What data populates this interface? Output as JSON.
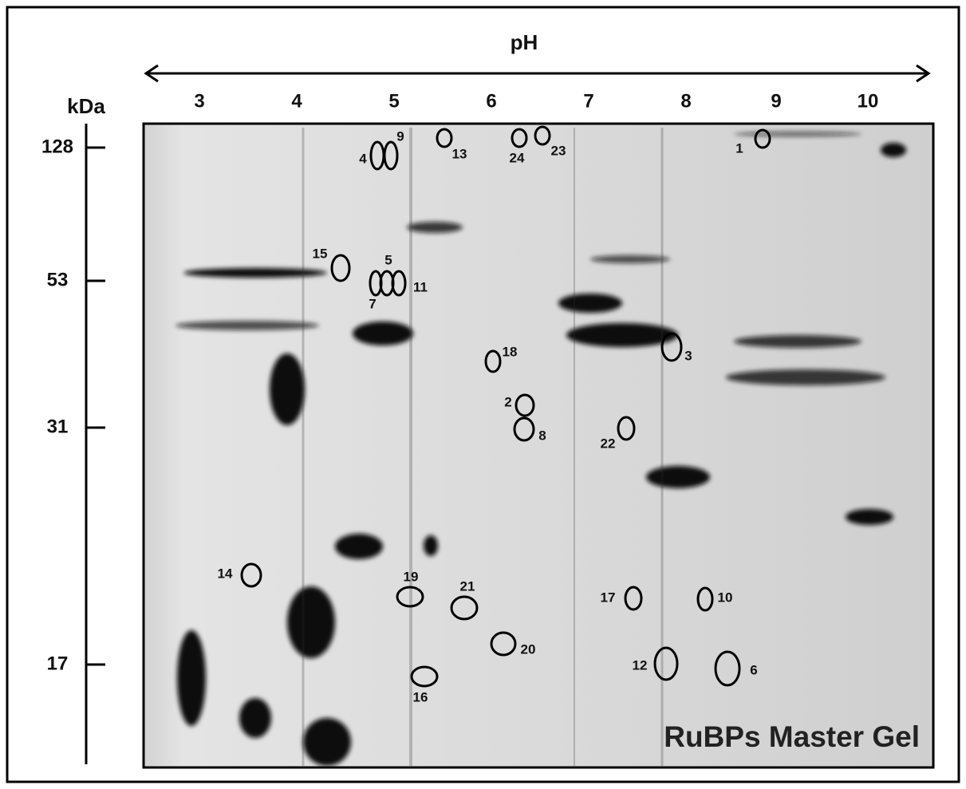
{
  "header": {
    "x_axis_title": "pH",
    "y_axis_title": "kDa"
  },
  "ph_ticks": [
    "3",
    "4",
    "5",
    "6",
    "7",
    "8",
    "9",
    "10"
  ],
  "kda_ticks": [
    "128",
    "53",
    "31",
    "17"
  ],
  "spots": [
    {
      "label": "1"
    },
    {
      "label": "4"
    },
    {
      "label": "9"
    },
    {
      "label": "13"
    },
    {
      "label": "24"
    },
    {
      "label": "23"
    },
    {
      "label": "15"
    },
    {
      "label": "5"
    },
    {
      "label": "7"
    },
    {
      "label": "11"
    },
    {
      "label": "18"
    },
    {
      "label": "3"
    },
    {
      "label": "2"
    },
    {
      "label": "8"
    },
    {
      "label": "22"
    },
    {
      "label": "14"
    },
    {
      "label": "19"
    },
    {
      "label": "21"
    },
    {
      "label": "17"
    },
    {
      "label": "10"
    },
    {
      "label": "20"
    },
    {
      "label": "12"
    },
    {
      "label": "6"
    },
    {
      "label": "16"
    }
  ],
  "caption": "RuBPs Master Gel"
}
